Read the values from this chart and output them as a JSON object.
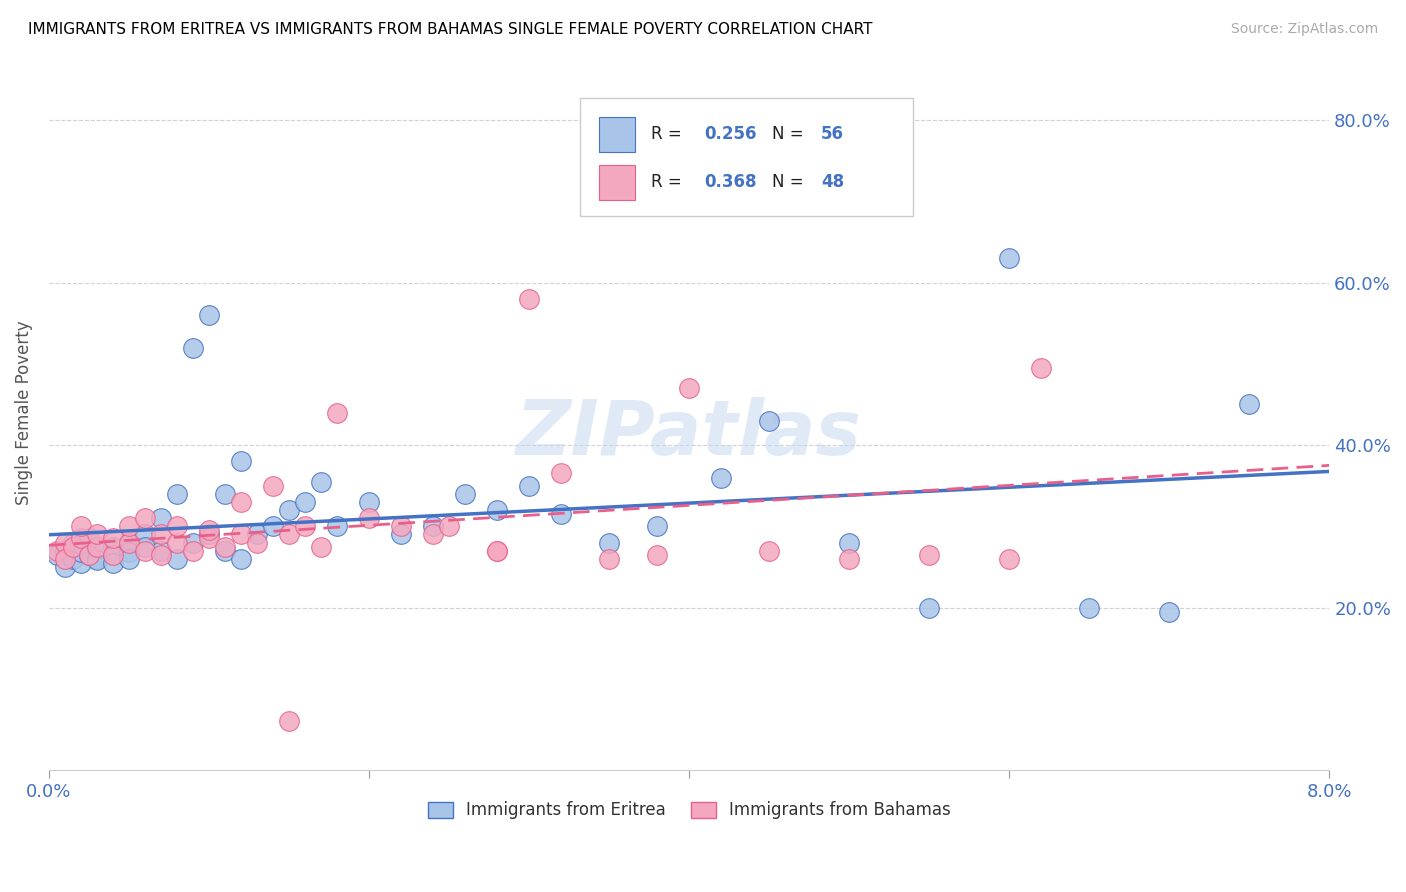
{
  "title": "IMMIGRANTS FROM ERITREA VS IMMIGRANTS FROM BAHAMAS SINGLE FEMALE POVERTY CORRELATION CHART",
  "source": "Source: ZipAtlas.com",
  "ylabel": "Single Female Poverty",
  "color_eritrea": "#a8c4e8",
  "color_bahamas": "#f4a8c0",
  "color_line_eritrea": "#4472c4",
  "color_line_bahamas": "#e8608a",
  "watermark": "ZIPatlas",
  "eritrea_x": [
    0.0005,
    0.001,
    0.001,
    0.0015,
    0.0015,
    0.002,
    0.002,
    0.002,
    0.0025,
    0.0025,
    0.003,
    0.003,
    0.003,
    0.004,
    0.004,
    0.004,
    0.005,
    0.005,
    0.005,
    0.006,
    0.006,
    0.007,
    0.007,
    0.008,
    0.008,
    0.009,
    0.009,
    0.01,
    0.01,
    0.011,
    0.011,
    0.012,
    0.012,
    0.013,
    0.014,
    0.015,
    0.016,
    0.017,
    0.018,
    0.02,
    0.022,
    0.024,
    0.026,
    0.028,
    0.03,
    0.032,
    0.035,
    0.038,
    0.042,
    0.045,
    0.05,
    0.055,
    0.06,
    0.065,
    0.07,
    0.075
  ],
  "eritrea_y": [
    0.265,
    0.27,
    0.25,
    0.26,
    0.28,
    0.255,
    0.268,
    0.278,
    0.265,
    0.285,
    0.26,
    0.272,
    0.258,
    0.275,
    0.265,
    0.255,
    0.28,
    0.268,
    0.26,
    0.29,
    0.275,
    0.31,
    0.27,
    0.34,
    0.26,
    0.52,
    0.28,
    0.56,
    0.29,
    0.34,
    0.27,
    0.38,
    0.26,
    0.29,
    0.3,
    0.32,
    0.33,
    0.355,
    0.3,
    0.33,
    0.29,
    0.3,
    0.34,
    0.32,
    0.35,
    0.315,
    0.28,
    0.3,
    0.36,
    0.43,
    0.28,
    0.2,
    0.63,
    0.2,
    0.195,
    0.45
  ],
  "bahamas_x": [
    0.0005,
    0.001,
    0.001,
    0.0015,
    0.002,
    0.002,
    0.0025,
    0.003,
    0.003,
    0.004,
    0.004,
    0.005,
    0.005,
    0.006,
    0.006,
    0.007,
    0.007,
    0.008,
    0.008,
    0.009,
    0.01,
    0.01,
    0.011,
    0.012,
    0.012,
    0.013,
    0.014,
    0.015,
    0.016,
    0.017,
    0.018,
    0.02,
    0.022,
    0.024,
    0.025,
    0.028,
    0.03,
    0.032,
    0.035,
    0.038,
    0.04,
    0.045,
    0.05,
    0.055,
    0.06,
    0.062,
    0.028,
    0.015
  ],
  "bahamas_y": [
    0.27,
    0.28,
    0.26,
    0.275,
    0.285,
    0.3,
    0.265,
    0.275,
    0.29,
    0.265,
    0.285,
    0.28,
    0.3,
    0.27,
    0.31,
    0.265,
    0.29,
    0.28,
    0.3,
    0.27,
    0.285,
    0.295,
    0.275,
    0.29,
    0.33,
    0.28,
    0.35,
    0.29,
    0.3,
    0.275,
    0.44,
    0.31,
    0.3,
    0.29,
    0.3,
    0.27,
    0.58,
    0.365,
    0.26,
    0.265,
    0.47,
    0.27,
    0.26,
    0.265,
    0.26,
    0.495,
    0.27,
    0.06
  ],
  "xlim": [
    0.0,
    0.08
  ],
  "ylim": [
    0.0,
    0.88
  ],
  "ytick_positions": [
    0.2,
    0.4,
    0.6,
    0.8
  ],
  "ytick_labels": [
    "20.0%",
    "40.0%",
    "60.0%",
    "80.0%"
  ],
  "xtick_positions": [
    0.0,
    0.02,
    0.04,
    0.06,
    0.08
  ],
  "xtick_labels": [
    "0.0%",
    "",
    "",
    "",
    "8.0%"
  ]
}
